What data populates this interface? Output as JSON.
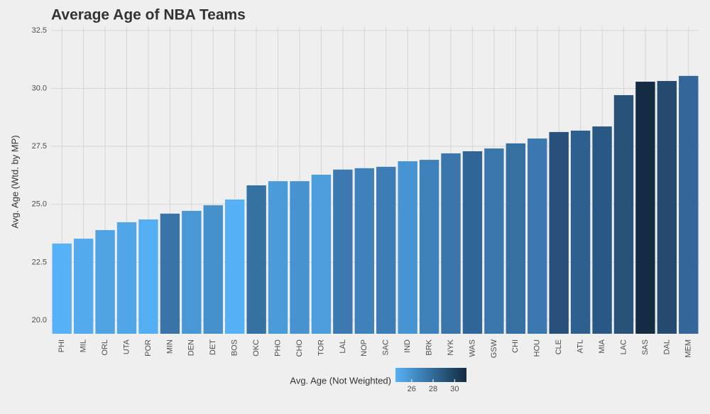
{
  "chart_data": {
    "type": "bar",
    "title": "Average Age of NBA Teams",
    "y_label": "Avg. Age (Wtd. by MP)",
    "categories": [
      "PHI",
      "MIL",
      "ORL",
      "UTA",
      "POR",
      "MIN",
      "DEN",
      "DET",
      "BOS",
      "OKC",
      "PHO",
      "CHO",
      "TOR",
      "LAL",
      "NOP",
      "SAC",
      "IND",
      "BRK",
      "NYK",
      "WAS",
      "GSW",
      "CHI",
      "HOU",
      "CLE",
      "ATL",
      "MIA",
      "LAC",
      "SAS",
      "DAL",
      "MEM"
    ],
    "values": [
      23.31,
      23.52,
      23.89,
      24.23,
      24.35,
      24.6,
      24.72,
      24.96,
      25.21,
      25.82,
      26.0,
      26.0,
      26.28,
      26.5,
      26.56,
      26.62,
      26.86,
      26.92,
      27.2,
      27.29,
      27.41,
      27.63,
      27.84,
      28.12,
      28.18,
      28.36,
      29.71,
      30.29,
      30.32,
      30.54
    ],
    "colors": [
      "#56b1f7",
      "#53abee",
      "#4fa3e3",
      "#51a6e8",
      "#54aef3",
      "#3874a8",
      "#4898d5",
      "#4690cb",
      "#56b0f6",
      "#3671a4",
      "#4a9bd9",
      "#4792cf",
      "#4b9ddc",
      "#3b79b0",
      "#3f81bb",
      "#3d7db6",
      "#4794d2",
      "#3e80b9",
      "#3974ab",
      "#2f6598",
      "#3a77ad",
      "#3670a3",
      "#3a78af",
      "#27507a",
      "#2d5f8f",
      "#2a5885",
      "#285379",
      "#132b43",
      "#254a70",
      "#346699"
    ],
    "ylim": [
      19.42,
      32.68
    ],
    "yticks": [
      {
        "value": 20,
        "label": "20.0"
      },
      {
        "value": 22.5,
        "label": "22.5"
      },
      {
        "value": 25,
        "label": "25.0"
      },
      {
        "value": 27.5,
        "label": "27.5"
      },
      {
        "value": 30,
        "label": "30.0"
      },
      {
        "value": 32.5,
        "label": "32.5"
      }
    ],
    "grid": true,
    "legend": {
      "title": "Avg. Age (Not Weighted)",
      "position": "bottom",
      "lim": [
        24.5,
        31.1
      ],
      "ticks": [
        26,
        28,
        30
      ],
      "low_color": "#56b1f7",
      "high_color": "#132b43"
    }
  }
}
